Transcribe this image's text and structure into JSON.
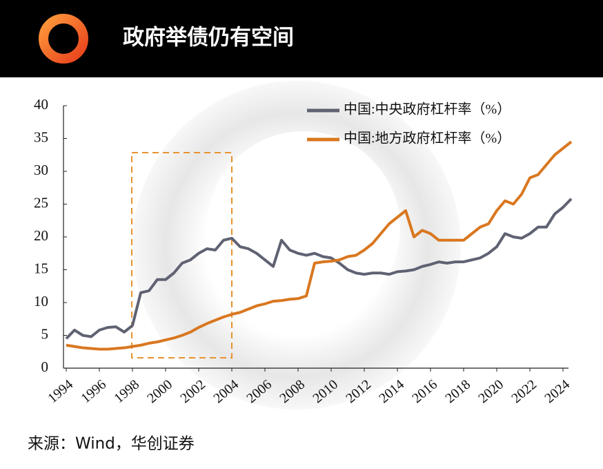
{
  "header": {
    "title": "政府举债仍有空间"
  },
  "chart_data": {
    "type": "line",
    "x": [
      1994,
      1994.5,
      1995,
      1995.5,
      1996,
      1996.5,
      1997,
      1997.5,
      1998,
      1998.5,
      1999,
      1999.5,
      2000,
      2000.5,
      2001,
      2001.5,
      2002,
      2002.5,
      2003,
      2003.5,
      2004,
      2004.5,
      2005,
      2005.5,
      2006,
      2006.5,
      2007,
      2007.5,
      2008,
      2008.5,
      2009,
      2009.5,
      2010,
      2010.5,
      2011,
      2011.5,
      2012,
      2012.5,
      2013,
      2013.5,
      2014,
      2014.5,
      2015,
      2015.5,
      2016,
      2016.5,
      2017,
      2017.5,
      2018,
      2018.5,
      2019,
      2019.5,
      2020,
      2020.5,
      2021,
      2021.5,
      2022,
      2022.5,
      2023,
      2023.5,
      2024,
      2024.5
    ],
    "series": [
      {
        "name": "中国:中央政府杠杆率（%）",
        "color": "#5f6272",
        "values": [
          4.5,
          5.8,
          5.0,
          4.8,
          5.8,
          6.2,
          6.3,
          5.5,
          6.5,
          11.5,
          11.8,
          13.5,
          13.5,
          14.5,
          16,
          16.5,
          17.5,
          18.2,
          18.0,
          19.5,
          19.8,
          18.5,
          18.2,
          17.5,
          16.5,
          15.5,
          19.5,
          18,
          17.5,
          17.2,
          17.5,
          17,
          16.8,
          16,
          15,
          14.5,
          14.3,
          14.5,
          14.5,
          14.3,
          14.7,
          14.8,
          15,
          15.5,
          15.8,
          16.2,
          16,
          16.2,
          16.2,
          16.5,
          16.8,
          17.5,
          18.5,
          20.5,
          20,
          19.8,
          20.5,
          21.5,
          21.5,
          23.5,
          24.5,
          25.8
        ]
      },
      {
        "name": "中国:地方政府杠杆率（%）",
        "color": "#d9771f",
        "values": [
          3.5,
          3.3,
          3.1,
          3.0,
          2.9,
          2.9,
          3.0,
          3.1,
          3.3,
          3.5,
          3.8,
          4.0,
          4.3,
          4.6,
          5.0,
          5.5,
          6.2,
          6.8,
          7.3,
          7.8,
          8.2,
          8.5,
          9.0,
          9.5,
          9.8,
          10.2,
          10.3,
          10.5,
          10.6,
          11,
          16,
          16.2,
          16.3,
          16.5,
          17,
          17.2,
          18,
          19,
          20.5,
          22,
          23,
          24,
          20,
          21,
          20.5,
          19.5,
          19.5,
          19.5,
          19.5,
          20.5,
          21.5,
          22,
          24,
          25.5,
          25,
          26.5,
          29,
          29.5,
          31,
          32.5,
          33.5,
          34.5
        ]
      }
    ],
    "xlim": [
      1994,
      2024.5
    ],
    "xticks": [
      1994,
      1996,
      1998,
      2000,
      2002,
      2004,
      2006,
      2008,
      2010,
      2012,
      2014,
      2016,
      2018,
      2020,
      2022,
      2024
    ],
    "ylim": [
      0,
      40
    ],
    "yticks": [
      0,
      5,
      10,
      15,
      20,
      25,
      30,
      35,
      40
    ]
  },
  "source": "来源：Wind，华创证券"
}
